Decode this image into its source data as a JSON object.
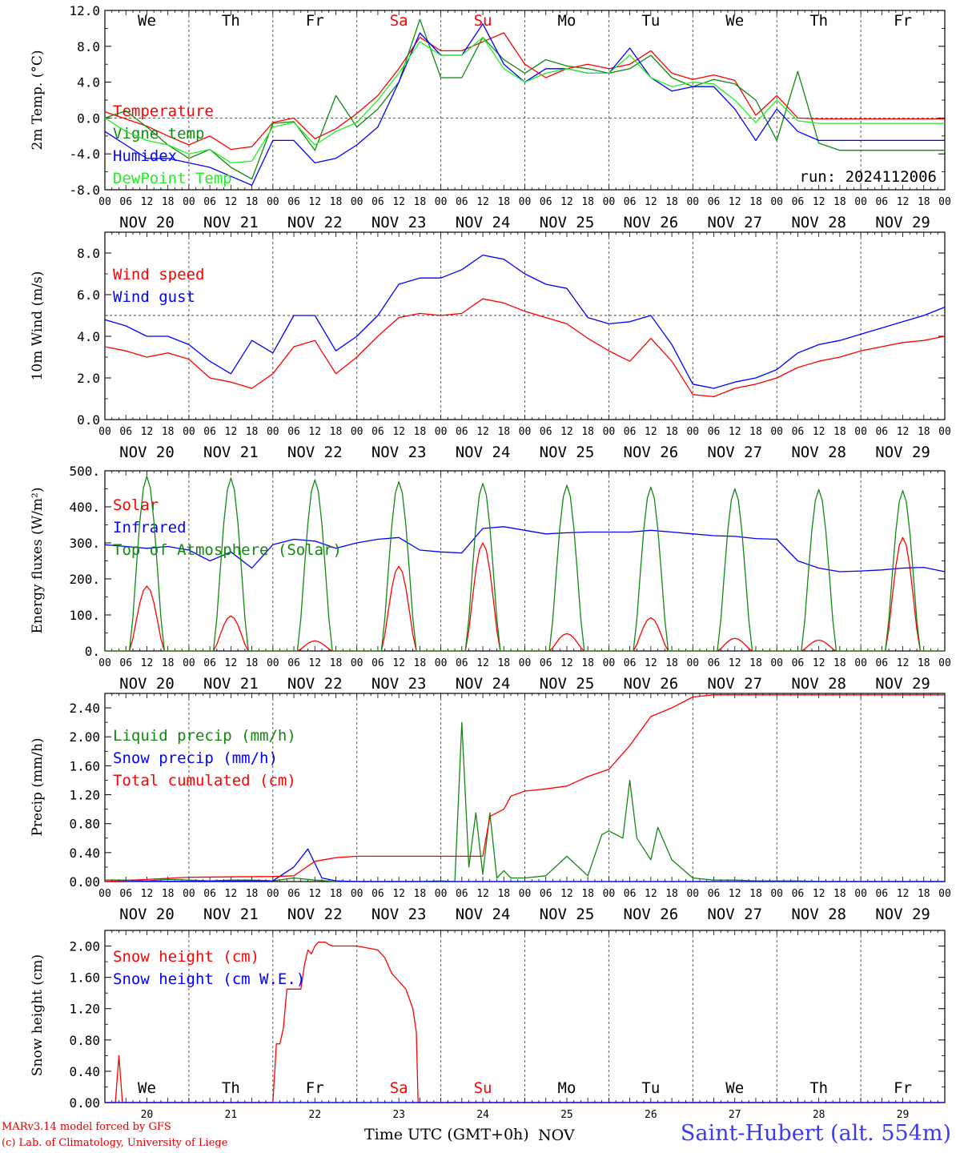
{
  "colors": {
    "red": "#ff0000",
    "green": "#118811",
    "blue": "#0000ff",
    "light_green": "#22ee22",
    "frame": "#000000",
    "station_blue": "#3a3af0"
  },
  "header": {
    "weekdays": [
      "We",
      "Th",
      "Fr",
      "Sa",
      "Su",
      "Mo",
      "Tu",
      "We",
      "Th",
      "Fr"
    ],
    "weekday_colors": [
      "#000000",
      "#000000",
      "#000000",
      "#ff0000",
      "#ff0000",
      "#000000",
      "#000000",
      "#000000",
      "#000000",
      "#000000"
    ],
    "run_label": "run: 2024112006"
  },
  "axis": {
    "hour_ticks": [
      "00",
      "06",
      "12",
      "18"
    ],
    "final_tick": "00",
    "dates": [
      "NOV 20",
      "NOV 21",
      "NOV 22",
      "NOV 23",
      "NOV 24",
      "NOV 25",
      "NOV 26",
      "NOV 27",
      "NOV 28",
      "NOV 29"
    ],
    "day_numbers": [
      "20",
      "21",
      "22",
      "23",
      "24",
      "25",
      "26",
      "27",
      "28",
      "29"
    ],
    "month_label": "NOV"
  },
  "footer": {
    "model": "MARv3.14 model forced by GFS",
    "lab": "(c) Lab. of Climatology, University of Liege",
    "time_label": "Time UTC (GMT+0h)",
    "station": "Saint-Hubert (alt. 554m)"
  },
  "chart_data": [
    {
      "type": "line",
      "ylabel": "2m Temp. (°C)",
      "ylim": [
        -8,
        12
      ],
      "yticks": [
        "12.0",
        "8.0",
        "4.0",
        "0.0",
        "-4.0",
        "-8.0"
      ],
      "zero_line": 0,
      "x_unit": "hours since NOV 20 00 UTC",
      "series": [
        {
          "name": "Temperature",
          "color": "#ff0000",
          "x": [
            0,
            12,
            18,
            24,
            30,
            36,
            42,
            48,
            54,
            60,
            66,
            72,
            78,
            84,
            90,
            96,
            102,
            108,
            114,
            120,
            126,
            132,
            138,
            144,
            150,
            156,
            162,
            168,
            174,
            180,
            186,
            192,
            198,
            204,
            210,
            216,
            222,
            228,
            234,
            240
          ],
          "y": [
            0.7,
            -0.9,
            -2.0,
            -3.0,
            -2.0,
            -3.5,
            -3.2,
            -0.5,
            0.0,
            -2.3,
            -1.2,
            0.5,
            2.5,
            5.5,
            9.0,
            7.5,
            7.5,
            8.5,
            9.5,
            6.0,
            4.5,
            5.5,
            6.0,
            5.5,
            6.0,
            7.5,
            5.0,
            4.3,
            4.8,
            4.2,
            0.3,
            2.5,
            0.0,
            -0.1,
            -0.1,
            -0.1,
            -0.1,
            -0.1,
            -0.1,
            -0.1
          ]
        },
        {
          "name": "Vigne temp",
          "color": "#118811",
          "x": [
            0,
            6,
            12,
            18,
            24,
            30,
            36,
            42,
            48,
            54,
            60,
            66,
            72,
            78,
            84,
            90,
            96,
            102,
            108,
            114,
            120,
            126,
            132,
            138,
            144,
            150,
            156,
            162,
            168,
            174,
            180,
            186,
            192,
            198,
            204,
            210,
            216,
            222,
            228,
            240
          ],
          "y": [
            0.0,
            0.8,
            -1.0,
            -3.0,
            -4.5,
            -3.5,
            -5.5,
            -6.8,
            -0.6,
            -0.4,
            -3.6,
            2.5,
            -1.0,
            1.0,
            4.0,
            11.0,
            4.5,
            4.5,
            9.0,
            6.5,
            5.0,
            6.5,
            5.8,
            5.5,
            5.0,
            5.5,
            7.0,
            4.5,
            3.5,
            4.3,
            3.8,
            2.0,
            -2.5,
            5.2,
            -2.8,
            -3.6,
            -3.6,
            -3.6,
            -3.6,
            -3.6
          ]
        },
        {
          "name": "Humidex",
          "color": "#0000ff",
          "x": [
            0,
            6,
            12,
            18,
            24,
            30,
            36,
            42,
            48,
            54,
            60,
            66,
            72,
            78,
            84,
            90,
            96,
            102,
            108,
            114,
            120,
            126,
            132,
            138,
            144,
            150,
            156,
            162,
            168,
            174,
            180,
            186,
            192,
            198,
            204,
            210,
            216,
            222,
            228,
            240
          ],
          "y": [
            -1.5,
            -3.0,
            -4.5,
            -4.5,
            -5.0,
            -5.5,
            -6.5,
            -7.5,
            -2.5,
            -2.5,
            -5.0,
            -4.5,
            -3.0,
            -1.0,
            4.0,
            9.5,
            7.0,
            7.0,
            10.5,
            6.0,
            4.0,
            5.5,
            5.5,
            5.0,
            5.0,
            7.8,
            4.5,
            3.0,
            3.5,
            3.5,
            1.0,
            -2.5,
            1.0,
            -1.5,
            -2.5,
            -2.5,
            -2.5,
            -2.5,
            -2.5,
            -2.5
          ]
        },
        {
          "name": "DewPoint Temp",
          "color": "#22ee22",
          "x": [
            0,
            6,
            12,
            18,
            24,
            30,
            36,
            42,
            48,
            54,
            60,
            66,
            72,
            78,
            84,
            90,
            96,
            102,
            108,
            114,
            120,
            126,
            132,
            138,
            144,
            150,
            156,
            162,
            168,
            174,
            180,
            186,
            192,
            198,
            204,
            210,
            216,
            222,
            228,
            240
          ],
          "y": [
            0.0,
            -1.5,
            -2.5,
            -3.0,
            -4.0,
            -3.5,
            -5.0,
            -4.8,
            -1.0,
            -0.5,
            -3.0,
            -1.5,
            -0.5,
            2.0,
            5.0,
            8.5,
            7.0,
            7.0,
            9.0,
            5.5,
            4.0,
            5.0,
            5.5,
            5.0,
            5.0,
            7.0,
            4.5,
            3.5,
            4.0,
            3.8,
            2.0,
            -0.5,
            2.0,
            -0.3,
            -0.6,
            -0.6,
            -0.6,
            -0.6,
            -0.6,
            -0.6
          ]
        }
      ]
    },
    {
      "type": "line",
      "ylabel": "10m Wind (m/s)",
      "ylim": [
        0,
        9
      ],
      "yticks": [
        "8.0",
        "6.0",
        "4.0",
        "2.0",
        "0.0"
      ],
      "ref_line": 5,
      "x_unit": "hours since NOV 20 00 UTC",
      "series": [
        {
          "name": "Wind speed",
          "color": "#ff0000",
          "x": [
            0,
            6,
            12,
            18,
            24,
            30,
            36,
            42,
            48,
            54,
            60,
            66,
            72,
            78,
            84,
            90,
            96,
            102,
            108,
            114,
            120,
            126,
            132,
            138,
            144,
            150,
            156,
            162,
            168,
            174,
            180,
            186,
            192,
            198,
            204,
            210,
            216,
            222,
            228,
            234,
            240
          ],
          "y": [
            3.5,
            3.3,
            3.0,
            3.2,
            2.9,
            2.0,
            1.8,
            1.5,
            2.2,
            3.5,
            3.8,
            2.2,
            3.0,
            4.0,
            4.9,
            5.1,
            5.0,
            5.1,
            5.8,
            5.6,
            5.2,
            4.9,
            4.6,
            3.9,
            3.3,
            2.8,
            3.9,
            2.8,
            1.2,
            1.1,
            1.5,
            1.7,
            2.0,
            2.5,
            2.8,
            3.0,
            3.3,
            3.5,
            3.7,
            3.8,
            4.0
          ]
        },
        {
          "name": "Wind gust",
          "color": "#0000ff",
          "x": [
            0,
            6,
            12,
            18,
            24,
            30,
            36,
            42,
            48,
            54,
            60,
            66,
            72,
            78,
            84,
            90,
            96,
            102,
            108,
            114,
            120,
            126,
            132,
            138,
            144,
            150,
            156,
            162,
            168,
            174,
            180,
            186,
            192,
            198,
            204,
            210,
            216,
            222,
            228,
            234,
            240
          ],
          "y": [
            4.8,
            4.5,
            4.0,
            4.0,
            3.6,
            2.8,
            2.2,
            3.8,
            3.2,
            5.0,
            5.0,
            3.3,
            4.0,
            5.0,
            6.5,
            6.8,
            6.8,
            7.2,
            7.9,
            7.7,
            7.0,
            6.5,
            6.3,
            4.9,
            4.6,
            4.7,
            5.0,
            3.6,
            1.7,
            1.5,
            1.8,
            2.0,
            2.4,
            3.2,
            3.6,
            3.8,
            4.1,
            4.4,
            4.7,
            5.0,
            5.4
          ]
        }
      ]
    },
    {
      "type": "line",
      "ylabel": "Energy fluxes (W/m²)",
      "ylim": [
        0,
        500
      ],
      "yticks": [
        "500.",
        "400.",
        "300.",
        "200.",
        "100.",
        "0."
      ],
      "x_unit": "hours since NOV 20 00 UTC",
      "series": [
        {
          "name": "Solar",
          "color": "#ff0000",
          "day_peaks": [
            180,
            97,
            28,
            235,
            300,
            48,
            92,
            35,
            30,
            315
          ]
        },
        {
          "name": "Infrared",
          "color": "#0000ff",
          "x": [
            0,
            6,
            12,
            18,
            24,
            30,
            36,
            42,
            48,
            54,
            60,
            66,
            72,
            78,
            84,
            90,
            96,
            102,
            108,
            114,
            120,
            126,
            132,
            138,
            144,
            150,
            156,
            162,
            168,
            174,
            180,
            186,
            192,
            198,
            204,
            210,
            216,
            222,
            228,
            234,
            240
          ],
          "y": [
            295,
            290,
            285,
            290,
            280,
            250,
            275,
            230,
            295,
            310,
            305,
            285,
            300,
            310,
            315,
            280,
            275,
            272,
            340,
            345,
            335,
            325,
            328,
            330,
            330,
            330,
            335,
            330,
            325,
            320,
            318,
            312,
            310,
            250,
            230,
            220,
            222,
            225,
            230,
            232,
            220
          ]
        },
        {
          "name": "Top of Atmosphere (Solar)",
          "color": "#118811",
          "day_peaks": [
            485,
            480,
            475,
            470,
            465,
            460,
            455,
            450,
            448,
            445
          ]
        }
      ]
    },
    {
      "type": "line",
      "ylabel": "Precip (mm/h)",
      "ylim": [
        0,
        2.6
      ],
      "yticks": [
        "2.40",
        "2.00",
        "1.60",
        "1.20",
        "0.80",
        "0.40",
        "0.00"
      ],
      "x_unit": "hours since NOV 20 00 UTC",
      "series": [
        {
          "name": "Liquid precip (mm/h)",
          "color": "#118811",
          "x": [
            0,
            6,
            12,
            18,
            24,
            30,
            36,
            42,
            48,
            54,
            60,
            66,
            72,
            78,
            84,
            90,
            96,
            100,
            102,
            104,
            106,
            108,
            110,
            112,
            114,
            116,
            120,
            126,
            132,
            138,
            142,
            144,
            148,
            150,
            152,
            156,
            158,
            162,
            168,
            174,
            180,
            186,
            192,
            198,
            204,
            210,
            216,
            222,
            228,
            234,
            240
          ],
          "y": [
            0.02,
            0.02,
            0.01,
            0.03,
            0.02,
            0.01,
            0.02,
            0.02,
            0.01,
            0.05,
            0.02,
            0.0,
            0.0,
            0.0,
            0.0,
            0.0,
            0.01,
            0.0,
            2.2,
            0.2,
            0.95,
            0.1,
            0.95,
            0.05,
            0.15,
            0.05,
            0.05,
            0.08,
            0.35,
            0.08,
            0.65,
            0.7,
            0.6,
            1.4,
            0.6,
            0.3,
            0.75,
            0.3,
            0.05,
            0.02,
            0.02,
            0.01,
            0.01,
            0.01,
            0.0,
            0.0,
            0.0,
            0.0,
            0.0,
            0.0,
            0.0
          ]
        },
        {
          "name": "Snow precip (mm/h)",
          "color": "#0000ff",
          "x": [
            0,
            48,
            54,
            58,
            60,
            62,
            66,
            72,
            240
          ],
          "y": [
            0.0,
            0.01,
            0.2,
            0.45,
            0.25,
            0.05,
            0.01,
            0.0,
            0.0
          ]
        },
        {
          "name": "Total cumulated (cm)",
          "color": "#ff0000",
          "x": [
            0,
            24,
            48,
            54,
            60,
            66,
            72,
            78,
            96,
            108,
            110,
            114,
            116,
            120,
            126,
            132,
            138,
            144,
            150,
            156,
            162,
            168,
            174,
            240
          ],
          "y": [
            0.0,
            0.06,
            0.07,
            0.08,
            0.28,
            0.33,
            0.35,
            0.35,
            0.35,
            0.35,
            0.9,
            1.0,
            1.18,
            1.25,
            1.28,
            1.32,
            1.45,
            1.55,
            1.88,
            2.28,
            2.4,
            2.55,
            2.58,
            2.58
          ]
        }
      ]
    },
    {
      "type": "line",
      "ylabel": "Snow height (cm)",
      "ylim": [
        0,
        2.2
      ],
      "yticks": [
        "2.00",
        "1.60",
        "1.20",
        "0.80",
        "0.40",
        "0.00"
      ],
      "x_unit": "hours since NOV 20 00 UTC",
      "series": [
        {
          "name": "Snow height (cm)",
          "color": "#ff0000",
          "x": [
            0,
            3,
            4,
            5,
            6,
            48,
            49,
            50,
            51,
            52,
            53,
            56,
            57,
            58,
            59,
            60,
            61,
            63,
            64,
            65,
            66,
            67,
            68,
            69,
            70,
            72,
            78,
            80,
            81,
            82,
            84,
            86,
            88,
            89,
            89.5,
            90,
            96,
            120,
            144,
            168,
            192,
            216,
            240
          ],
          "y": [
            0.0,
            0.0,
            0.6,
            0.0,
            0.0,
            0.0,
            0.75,
            0.75,
            0.95,
            1.45,
            1.45,
            1.45,
            1.75,
            1.95,
            1.9,
            2.0,
            2.05,
            2.05,
            2.02,
            2.0,
            2.0,
            2.0,
            2.0,
            2.0,
            2.0,
            2.0,
            1.95,
            1.85,
            1.75,
            1.65,
            1.55,
            1.45,
            1.2,
            0.9,
            0.0,
            0.0,
            0.0,
            0.0,
            0.0,
            0.0,
            0.0,
            0.0,
            0.0
          ]
        },
        {
          "name": "Snow height (cm W.E.)",
          "color": "#0000ff",
          "x": [
            0,
            240
          ],
          "y": [
            0.0,
            0.0
          ]
        }
      ]
    }
  ]
}
